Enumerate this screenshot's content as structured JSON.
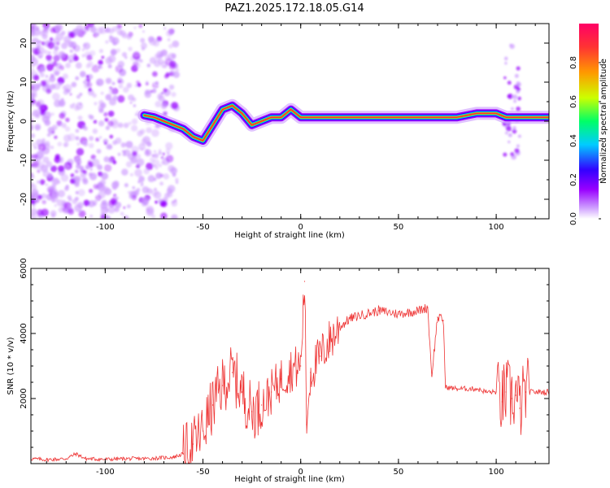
{
  "title": "PAZ1.2025.172.18.05.G14",
  "chart_data": [
    {
      "type": "heatmap",
      "title": "PAZ1.2025.172.18.05.G14",
      "xlabel": "Height of straight line (km)",
      "ylabel": "Frequency (Hz)",
      "xlim": [
        -138,
        127
      ],
      "ylim": [
        -25,
        25
      ],
      "x_ticks": [
        "-100",
        "-50",
        "0",
        "50",
        "100"
      ],
      "y_ticks": [
        "20",
        "10",
        "0",
        "-10",
        "-20"
      ],
      "colorbar": {
        "label": "Normalized spectral amplitude",
        "range": [
          0.0,
          1.0
        ],
        "ticks": [
          "0.0",
          "0.2",
          "0.4",
          "0.6",
          "0.8"
        ],
        "colors": [
          "#ffffff",
          "#cc99ff",
          "#9900ff",
          "#3300ff",
          "#00ccff",
          "#00ff66",
          "#ccff00",
          "#ff9900",
          "#ff3333",
          "#ff0066"
        ]
      },
      "ridge": {
        "x": [
          -80,
          -75,
          -70,
          -65,
          -60,
          -55,
          -50,
          -45,
          -40,
          -35,
          -30,
          -25,
          -20,
          -15,
          -10,
          -5,
          0,
          5,
          10,
          20,
          30,
          40,
          50,
          60,
          70,
          80,
          90,
          100,
          105,
          110,
          115,
          120,
          127
        ],
        "y": [
          1.5,
          1,
          0,
          -1,
          -2,
          -4,
          -5,
          -1,
          3,
          4,
          2,
          -1,
          0,
          1,
          1,
          3,
          1,
          1,
          1,
          1,
          1,
          1,
          1,
          1,
          1,
          1,
          2,
          2,
          1,
          1,
          1,
          1,
          1
        ]
      },
      "grid": false
    },
    {
      "type": "line",
      "xlabel": "Height of straight line (km)",
      "ylabel": "SNR (10 * v/v)",
      "xlim": [
        -138,
        127
      ],
      "ylim": [
        0,
        6000
      ],
      "x_ticks": [
        "-100",
        "-50",
        "0",
        "50",
        "100"
      ],
      "y_ticks": [
        "2000",
        "4000",
        "6000"
      ],
      "series": [
        {
          "color": "#ee3333",
          "x": [
            -138,
            -130,
            -120,
            -115,
            -110,
            -100,
            -90,
            -80,
            -70,
            -65,
            -60,
            -55,
            -50,
            -45,
            -40,
            -35,
            -30,
            -25,
            -20,
            -15,
            -10,
            -5,
            0,
            2,
            3,
            5,
            10,
            15,
            20,
            25,
            30,
            40,
            50,
            60,
            65,
            67,
            70,
            73,
            74,
            80,
            90,
            95,
            100,
            103,
            105,
            108,
            110,
            112,
            115,
            120,
            127
          ],
          "y": [
            150,
            120,
            150,
            300,
            150,
            130,
            150,
            150,
            180,
            200,
            300,
            600,
            1000,
            1800,
            2400,
            2800,
            2200,
            1600,
            1800,
            2200,
            2600,
            2900,
            3000,
            5600,
            1200,
            2800,
            3300,
            3800,
            4200,
            4450,
            4550,
            4700,
            4600,
            4700,
            4800,
            2700,
            4500,
            4400,
            2350,
            2300,
            2300,
            2200,
            2200,
            1900,
            2200,
            2000,
            2100,
            1700,
            2200,
            2200,
            2200
          ]
        }
      ],
      "grid": false
    }
  ]
}
